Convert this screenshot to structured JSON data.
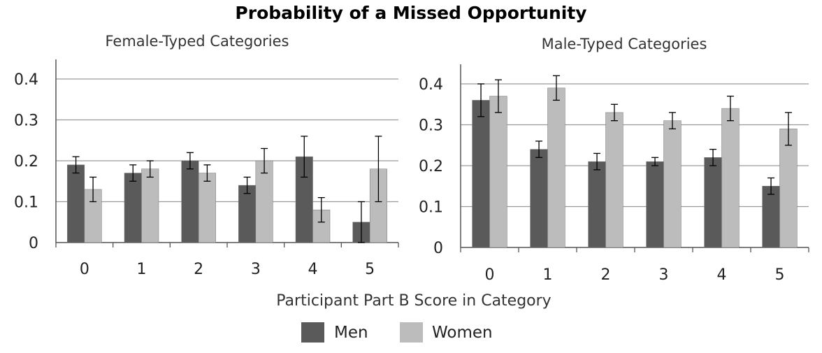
{
  "chart_data": {
    "type": "bar",
    "title": "Probability of a Missed Opportunity",
    "xlabel": "Participant Part B Score in Category",
    "legend_position": "bottom",
    "series_names": [
      "Men",
      "Women"
    ],
    "colors": {
      "Men": "#5a5a5a",
      "Women": "#bcbcbc"
    },
    "panels": [
      {
        "title": "Female-Typed Categories",
        "categories": [
          "0",
          "1",
          "2",
          "3",
          "4",
          "5"
        ],
        "ylim": [
          0,
          0.4
        ],
        "yticks": [
          "0",
          "0.1",
          "0.2",
          "0.3",
          "0.4"
        ],
        "grid": true,
        "series": [
          {
            "name": "Men",
            "values": [
              0.19,
              0.17,
              0.2,
              0.14,
              0.21,
              0.05
            ],
            "err_low": [
              0.17,
              0.15,
              0.18,
              0.12,
              0.16,
              0.0
            ],
            "err_high": [
              0.21,
              0.19,
              0.22,
              0.16,
              0.26,
              0.1
            ]
          },
          {
            "name": "Women",
            "values": [
              0.13,
              0.18,
              0.17,
              0.2,
              0.08,
              0.18
            ],
            "err_low": [
              0.1,
              0.16,
              0.15,
              0.17,
              0.05,
              0.1
            ],
            "err_high": [
              0.16,
              0.2,
              0.19,
              0.23,
              0.11,
              0.26
            ]
          }
        ]
      },
      {
        "title": "Male-Typed Categories",
        "categories": [
          "0",
          "1",
          "2",
          "3",
          "4",
          "5"
        ],
        "ylim": [
          0,
          0.4
        ],
        "yticks": [
          "0",
          "0.1",
          "0.2",
          "0.3",
          "0.4"
        ],
        "grid": true,
        "series": [
          {
            "name": "Men",
            "values": [
              0.36,
              0.24,
              0.21,
              0.21,
              0.22,
              0.15
            ],
            "err_low": [
              0.32,
              0.22,
              0.19,
              0.2,
              0.2,
              0.13
            ],
            "err_high": [
              0.4,
              0.26,
              0.23,
              0.22,
              0.24,
              0.17
            ]
          },
          {
            "name": "Women",
            "values": [
              0.37,
              0.39,
              0.33,
              0.31,
              0.34,
              0.29
            ],
            "err_low": [
              0.33,
              0.36,
              0.31,
              0.29,
              0.31,
              0.25
            ],
            "err_high": [
              0.41,
              0.42,
              0.35,
              0.33,
              0.37,
              0.33
            ]
          }
        ]
      }
    ]
  }
}
